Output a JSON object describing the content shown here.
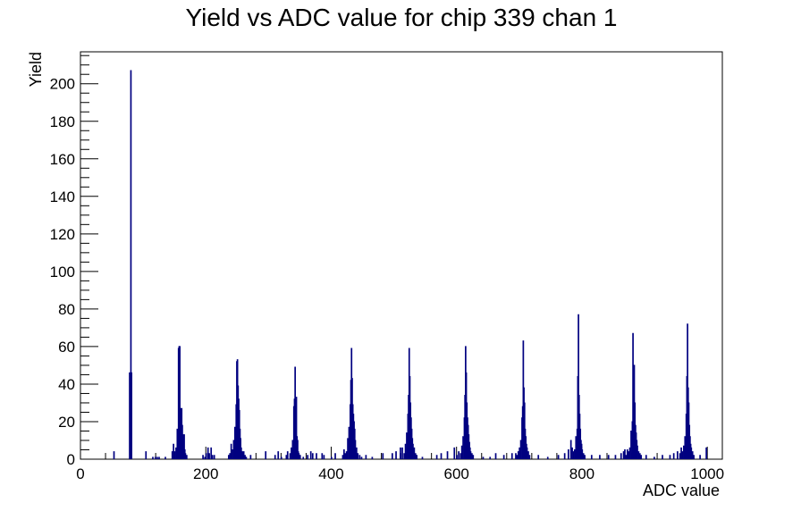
{
  "chart_data": {
    "type": "histogram",
    "title": "Yield vs ADC value for chip 339 chan 1",
    "xlabel": "ADC value",
    "ylabel": "Yield",
    "xlim": [
      0,
      1024
    ],
    "ylim": [
      0,
      217
    ],
    "grid": false,
    "legend": "none",
    "line_color": "#000080",
    "x_ticks": [
      0,
      200,
      400,
      600,
      800,
      1000
    ],
    "y_ticks": [
      0,
      20,
      40,
      60,
      80,
      100,
      120,
      140,
      160,
      180,
      200
    ],
    "peaks": [
      {
        "x": 80,
        "values": [
          [
            78,
            46
          ],
          [
            79,
            46
          ],
          [
            80,
            207
          ],
          [
            81,
            46
          ]
        ]
      },
      {
        "x": 158,
        "values": [
          [
            146,
            4
          ],
          [
            148,
            8
          ],
          [
            150,
            4
          ],
          [
            152,
            6
          ],
          [
            154,
            16
          ],
          [
            156,
            59
          ],
          [
            157,
            60
          ],
          [
            158,
            60
          ],
          [
            159,
            27
          ],
          [
            160,
            20
          ],
          [
            161,
            27
          ],
          [
            162,
            18
          ],
          [
            163,
            13
          ],
          [
            164,
            8
          ],
          [
            165,
            13
          ],
          [
            166,
            5
          ],
          [
            167,
            3
          ],
          [
            169,
            2
          ]
        ]
      },
      {
        "x": 250,
        "values": [
          [
            236,
            2
          ],
          [
            238,
            3
          ],
          [
            240,
            8
          ],
          [
            242,
            5
          ],
          [
            244,
            10
          ],
          [
            246,
            17
          ],
          [
            248,
            29
          ],
          [
            249,
            52
          ],
          [
            250,
            53
          ],
          [
            251,
            39
          ],
          [
            252,
            32
          ],
          [
            253,
            26
          ],
          [
            254,
            16
          ],
          [
            255,
            11
          ],
          [
            256,
            6
          ],
          [
            258,
            4
          ],
          [
            260,
            4
          ],
          [
            262,
            2
          ],
          [
            264,
            1
          ]
        ]
      },
      {
        "x": 343,
        "values": [
          [
            328,
            2
          ],
          [
            330,
            4
          ],
          [
            334,
            3
          ],
          [
            336,
            6
          ],
          [
            338,
            10
          ],
          [
            340,
            28
          ],
          [
            341,
            32
          ],
          [
            342,
            49
          ],
          [
            343,
            28
          ],
          [
            344,
            33
          ],
          [
            345,
            12
          ],
          [
            346,
            10
          ],
          [
            347,
            4
          ],
          [
            348,
            3
          ],
          [
            350,
            2
          ]
        ]
      },
      {
        "x": 435,
        "values": [
          [
            418,
            2
          ],
          [
            420,
            5
          ],
          [
            422,
            3
          ],
          [
            424,
            4
          ],
          [
            426,
            11
          ],
          [
            428,
            17
          ],
          [
            430,
            29
          ],
          [
            431,
            42
          ],
          [
            432,
            59
          ],
          [
            433,
            43
          ],
          [
            434,
            29
          ],
          [
            435,
            24
          ],
          [
            436,
            20
          ],
          [
            437,
            16
          ],
          [
            438,
            10
          ],
          [
            440,
            6
          ],
          [
            442,
            3
          ],
          [
            445,
            2
          ],
          [
            448,
            1
          ]
        ]
      },
      {
        "x": 526,
        "values": [
          [
            510,
            3
          ],
          [
            513,
            6
          ],
          [
            516,
            3
          ],
          [
            518,
            8
          ],
          [
            520,
            14
          ],
          [
            522,
            24
          ],
          [
            523,
            34
          ],
          [
            524,
            59
          ],
          [
            525,
            44
          ],
          [
            526,
            30
          ],
          [
            527,
            22
          ],
          [
            528,
            16
          ],
          [
            529,
            11
          ],
          [
            530,
            8
          ],
          [
            532,
            6
          ],
          [
            534,
            3
          ],
          [
            536,
            2
          ]
        ]
      },
      {
        "x": 618,
        "values": [
          [
            600,
            2
          ],
          [
            603,
            4
          ],
          [
            606,
            3
          ],
          [
            608,
            7
          ],
          [
            610,
            12
          ],
          [
            612,
            22
          ],
          [
            613,
            34
          ],
          [
            614,
            60
          ],
          [
            615,
            46
          ],
          [
            616,
            30
          ],
          [
            617,
            22
          ],
          [
            618,
            18
          ],
          [
            619,
            13
          ],
          [
            620,
            9
          ],
          [
            621,
            6
          ],
          [
            622,
            4
          ],
          [
            624,
            3
          ],
          [
            626,
            2
          ]
        ]
      },
      {
        "x": 711,
        "values": [
          [
            694,
            3
          ],
          [
            696,
            2
          ],
          [
            698,
            4
          ],
          [
            700,
            6
          ],
          [
            702,
            10
          ],
          [
            704,
            22
          ],
          [
            705,
            28
          ],
          [
            706,
            63
          ],
          [
            707,
            38
          ],
          [
            708,
            30
          ],
          [
            709,
            16
          ],
          [
            710,
            12
          ],
          [
            711,
            8
          ],
          [
            712,
            6
          ],
          [
            714,
            4
          ],
          [
            716,
            2
          ]
        ]
      },
      {
        "x": 800,
        "values": [
          [
            782,
            10
          ],
          [
            784,
            6
          ],
          [
            786,
            4
          ],
          [
            788,
            5
          ],
          [
            790,
            12
          ],
          [
            792,
            16
          ],
          [
            793,
            44
          ],
          [
            794,
            77
          ],
          [
            795,
            34
          ],
          [
            796,
            24
          ],
          [
            797,
            16
          ],
          [
            798,
            10
          ],
          [
            799,
            8
          ],
          [
            800,
            5
          ],
          [
            802,
            3
          ],
          [
            804,
            2
          ]
        ]
      },
      {
        "x": 888,
        "values": [
          [
            868,
            5
          ],
          [
            870,
            2
          ],
          [
            872,
            5
          ],
          [
            874,
            4
          ],
          [
            876,
            6
          ],
          [
            878,
            15
          ],
          [
            880,
            20
          ],
          [
            881,
            67
          ],
          [
            882,
            32
          ],
          [
            883,
            50
          ],
          [
            884,
            30
          ],
          [
            885,
            18
          ],
          [
            886,
            14
          ],
          [
            887,
            10
          ],
          [
            888,
            7
          ],
          [
            890,
            4
          ],
          [
            892,
            3
          ],
          [
            894,
            2
          ]
        ]
      },
      {
        "x": 975,
        "values": [
          [
            956,
            3
          ],
          [
            958,
            6
          ],
          [
            960,
            4
          ],
          [
            962,
            7
          ],
          [
            964,
            12
          ],
          [
            966,
            24
          ],
          [
            967,
            44
          ],
          [
            968,
            72
          ],
          [
            969,
            38
          ],
          [
            970,
            30
          ],
          [
            971,
            18
          ],
          [
            972,
            12
          ],
          [
            973,
            8
          ],
          [
            974,
            6
          ],
          [
            976,
            4
          ],
          [
            978,
            2
          ]
        ]
      }
    ],
    "isolated_bins": [
      [
        53,
        4
      ],
      [
        104,
        4
      ],
      [
        115,
        1
      ],
      [
        119,
        1
      ],
      [
        122,
        1
      ],
      [
        125,
        1
      ],
      [
        135,
        1
      ],
      [
        195,
        2
      ],
      [
        198,
        1
      ],
      [
        200,
        3
      ],
      [
        203,
        6
      ],
      [
        205,
        3
      ],
      [
        208,
        6
      ],
      [
        210,
        2
      ],
      [
        213,
        2
      ],
      [
        256,
        1
      ],
      [
        259,
        1
      ],
      [
        263,
        1
      ],
      [
        271,
        2
      ],
      [
        295,
        4
      ],
      [
        310,
        2
      ],
      [
        315,
        4
      ],
      [
        320,
        1
      ],
      [
        355,
        1
      ],
      [
        362,
        2
      ],
      [
        367,
        4
      ],
      [
        370,
        3
      ],
      [
        376,
        3
      ],
      [
        385,
        3
      ],
      [
        388,
        2
      ],
      [
        400,
        1
      ],
      [
        406,
        3
      ],
      [
        455,
        2
      ],
      [
        465,
        1
      ],
      [
        482,
        3
      ],
      [
        497,
        3
      ],
      [
        503,
        4
      ],
      [
        510,
        6
      ],
      [
        545,
        1
      ],
      [
        568,
        2
      ],
      [
        575,
        3
      ],
      [
        585,
        4
      ],
      [
        596,
        6
      ],
      [
        642,
        1
      ],
      [
        653,
        1
      ],
      [
        662,
        3
      ],
      [
        675,
        2
      ],
      [
        688,
        3
      ],
      [
        730,
        2
      ],
      [
        745,
        1
      ],
      [
        762,
        2
      ],
      [
        772,
        3
      ],
      [
        778,
        5
      ],
      [
        815,
        2
      ],
      [
        828,
        2
      ],
      [
        842,
        2
      ],
      [
        853,
        2
      ],
      [
        862,
        3
      ],
      [
        866,
        4
      ],
      [
        902,
        2
      ],
      [
        915,
        1
      ],
      [
        928,
        2
      ],
      [
        940,
        2
      ],
      [
        946,
        3
      ],
      [
        952,
        4
      ],
      [
        988,
        2
      ],
      [
        998,
        6
      ]
    ]
  }
}
